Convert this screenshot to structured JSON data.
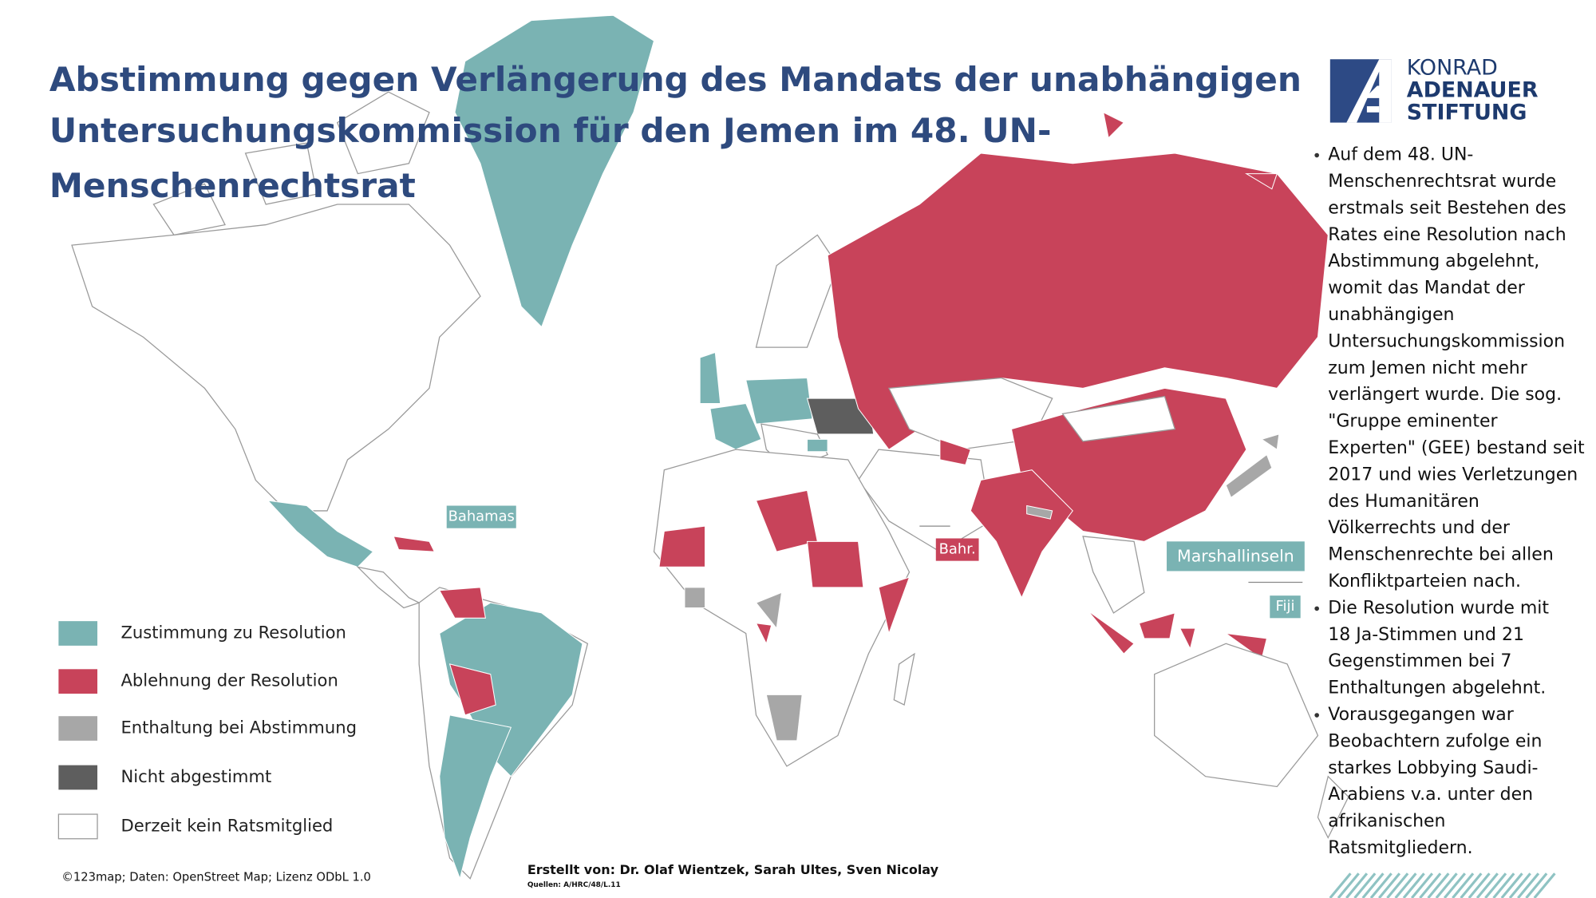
{
  "header": {
    "title_lines": [
      "Abstimmung gegen Verlängerung des Mandats der unabhängigen",
      "Untersuchungskommission für den Jemen im 48. UN-",
      "Menschenrechtsrat"
    ]
  },
  "logo": {
    "lines": [
      "KONRAD",
      "ADENAUER",
      "STIFTUNG"
    ]
  },
  "map_labels": [
    "Bahamas",
    "Bahr.",
    "Marshallinseln",
    "Fiji"
  ],
  "legend": [
    "Zustimmung zu Resolution",
    "Ablehnung der Resolution",
    "Enthaltung bei Abstimmung",
    "Nicht abgestimmt",
    "Derzeit kein Ratsmitglied"
  ],
  "bullets": [
    [
      "Auf dem 48. UN-",
      "Menschenrechtsrat wurde",
      "erstmals seit Bestehen des",
      "Rates eine Resolution nach",
      "Abstimmung abgelehnt,",
      "womit das Mandat der",
      "unabhängigen",
      "Untersuchungskommission",
      "zum Jemen nicht mehr",
      "verlängert wurde. Die sog.",
      "\"Gruppe eminenter",
      "Experten\" (GEE) bestand seit",
      "2017 und wies Verletzungen",
      "des Humanitären",
      "Völkerrechts und der",
      "Menschenrechte bei allen",
      "Konfliktparteien nach."
    ],
    [
      "Die Resolution wurde mit",
      "18 Ja-Stimmen und 21",
      "Gegenstimmen bei 7",
      "Enthaltungen abgelehnt."
    ],
    [
      "Vorausgegangen war",
      "Beobachtern zufolge ein",
      "starkes Lobbying Saudi-",
      "Arabiens v.a. unter den",
      "afrikanischen",
      "Ratsmitgliedern."
    ]
  ],
  "footer": {
    "license": "©123map; Daten: OpenStreet Map; Lizenz ODbL 1.0",
    "credits": "Erstellt von: Dr. Olaf Wientzek, Sarah Ultes, Sven Nicolay",
    "sources": "Quellen: A/HRC/48/L.11"
  }
}
